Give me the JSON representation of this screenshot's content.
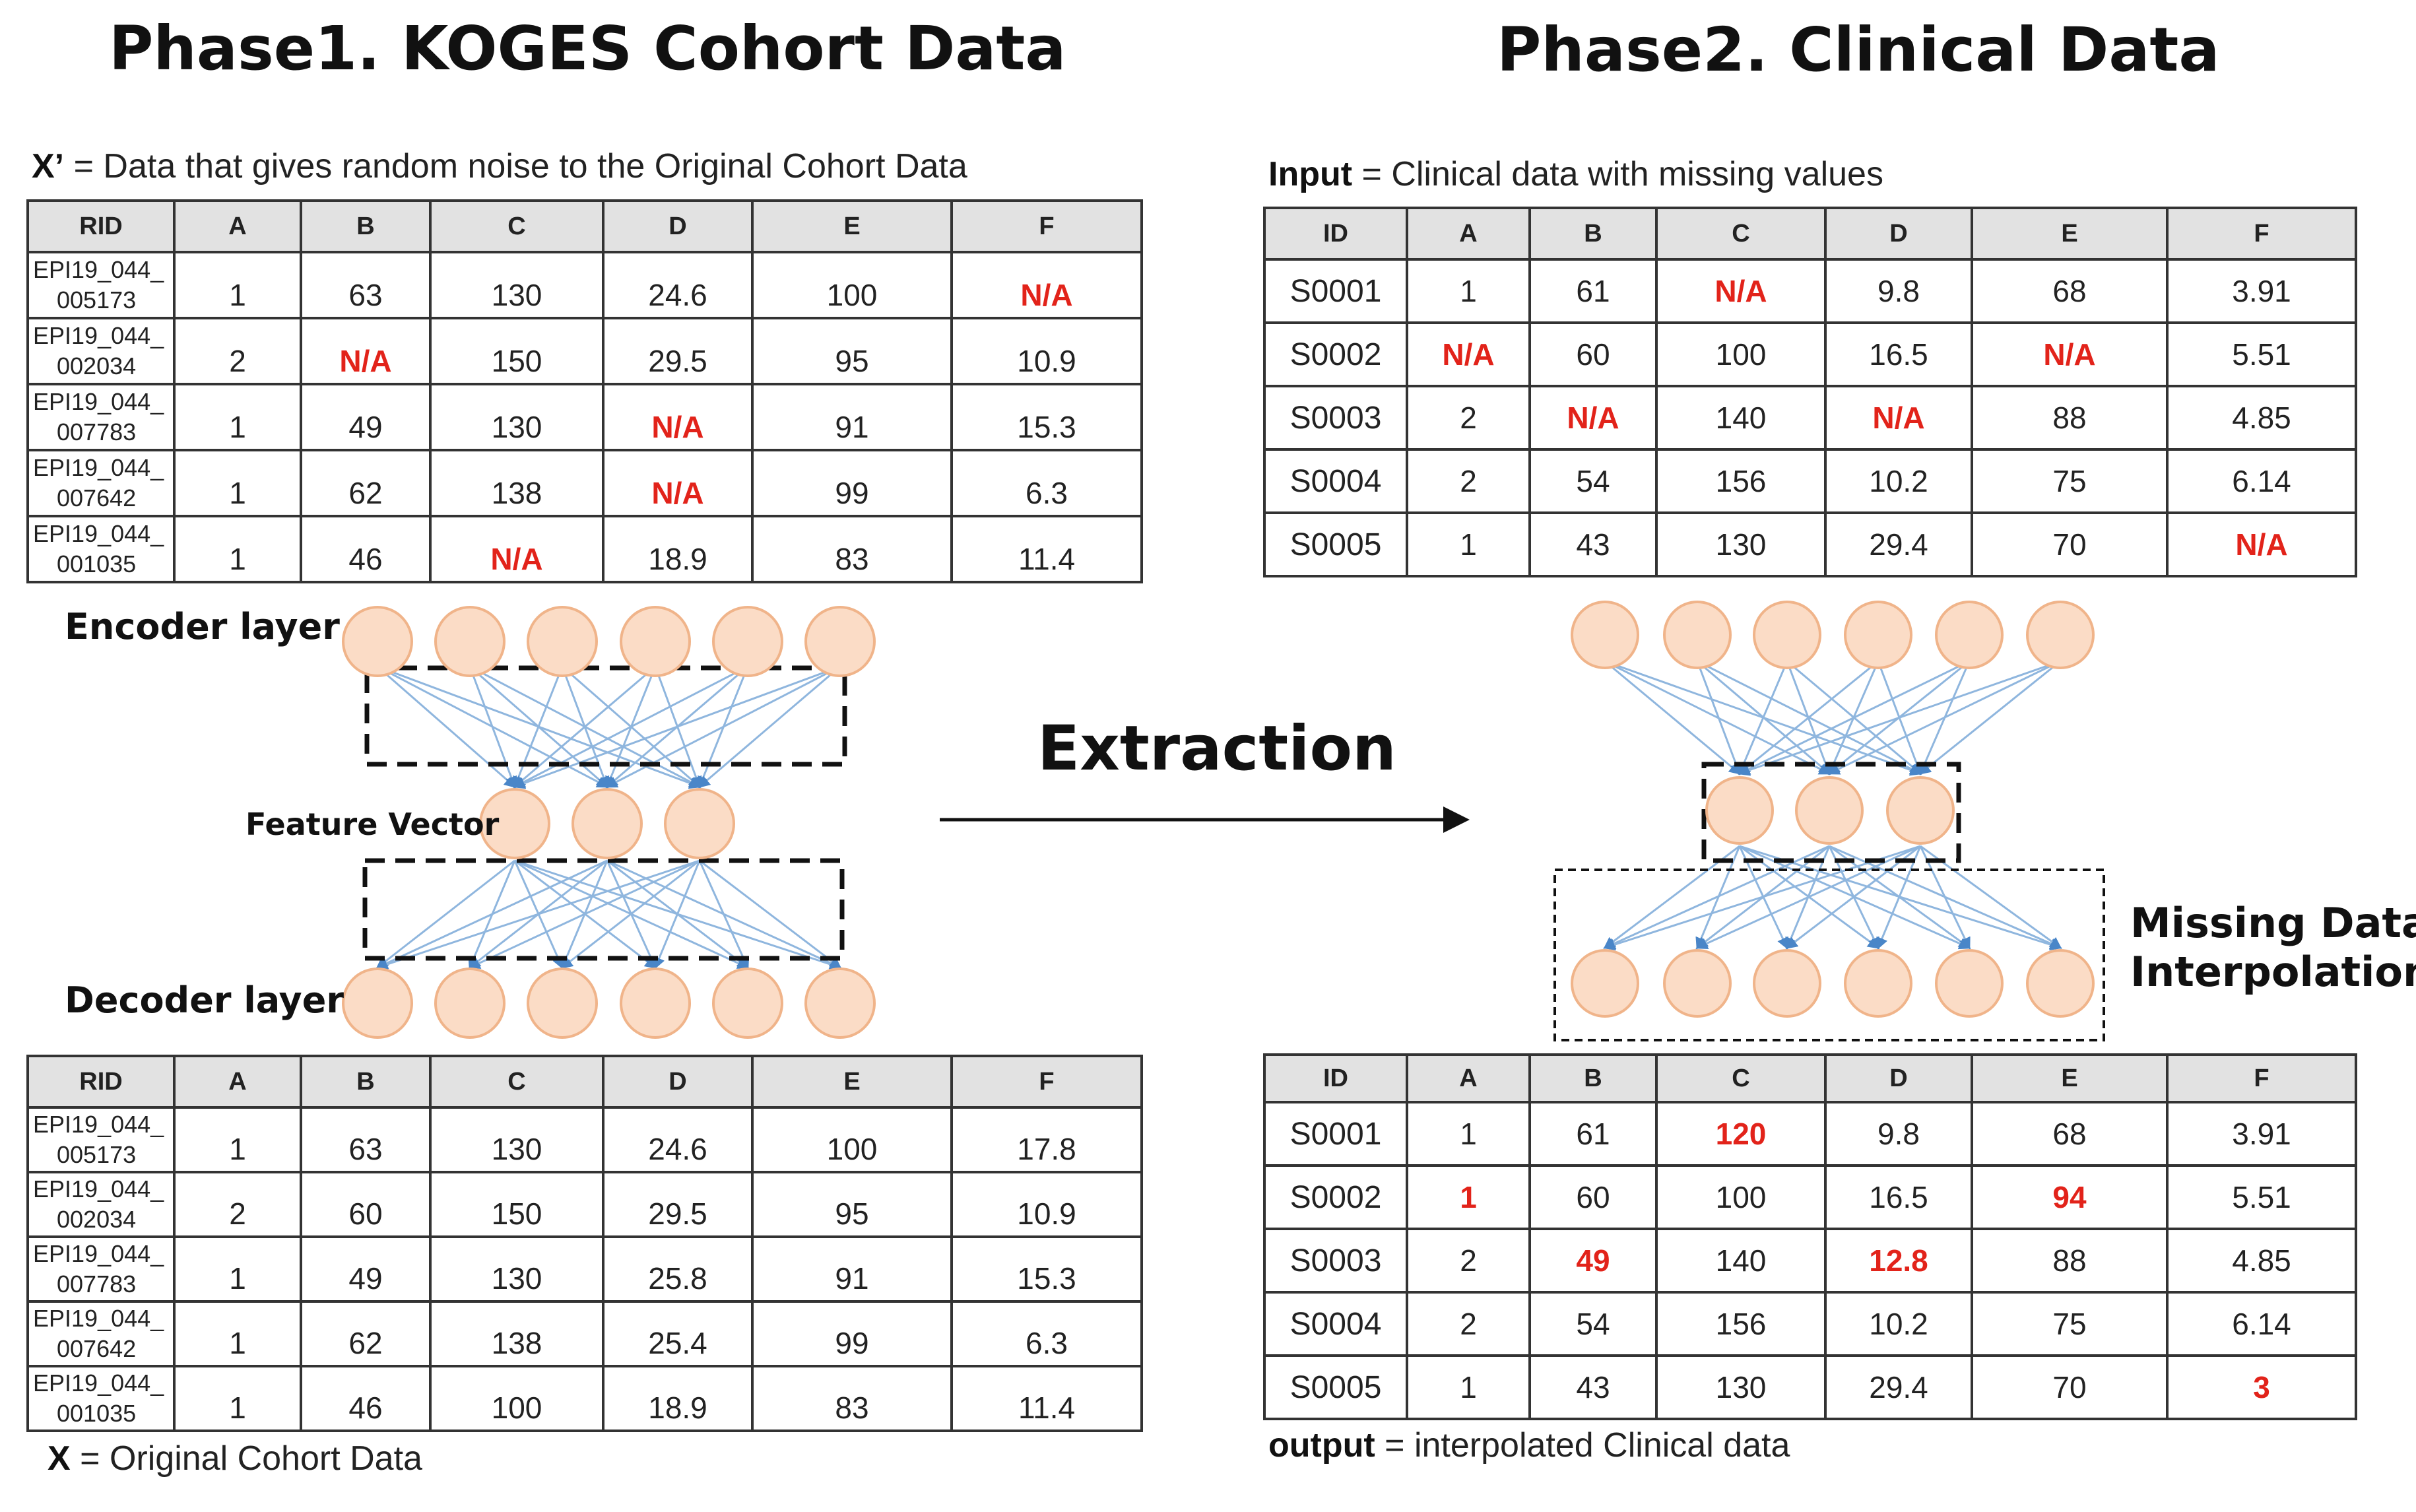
{
  "titles": {
    "phase1": "Phase1. KOGES Cohort Data",
    "phase2": "Phase2. Clinical Data"
  },
  "captions": {
    "x_prime_symbol": "X’",
    "x_prime_text": "= Data that gives random noise to the Original Cohort Data",
    "x_symbol": "X",
    "x_text": "= Original Cohort Data",
    "input_symbol": "Input",
    "input_text": "= Clinical data with missing values",
    "output_symbol": "output",
    "output_text": "= interpolated Clinical data"
  },
  "labels": {
    "encoder": "Encoder layer",
    "decoder": "Decoder layer",
    "feature_vector": "Feature Vector",
    "extraction": "Extraction",
    "missing_line1": "Missing Data",
    "missing_line2": "Interpolation"
  },
  "colors": {
    "node_fill": "#fbdcc6",
    "node_stroke": "#f0b48a",
    "edge": "#8fb6de",
    "arrowhead": "#4a86c8",
    "missing": "#e2231a"
  },
  "cohort_noisy": {
    "columns": [
      "RID",
      "A",
      "B",
      "C",
      "D",
      "E",
      "F"
    ],
    "rows": [
      {
        "rid1": "EPI19_044_",
        "rid2": "005173",
        "cells": [
          "1",
          "63",
          "130",
          "24.6",
          "100",
          "N/A"
        ]
      },
      {
        "rid1": "EPI19_044_",
        "rid2": "002034",
        "cells": [
          "2",
          "N/A",
          "150",
          "29.5",
          "95",
          "10.9"
        ]
      },
      {
        "rid1": "EPI19_044_",
        "rid2": "007783",
        "cells": [
          "1",
          "49",
          "130",
          "N/A",
          "91",
          "15.3"
        ]
      },
      {
        "rid1": "EPI19_044_",
        "rid2": "007642",
        "cells": [
          "1",
          "62",
          "138",
          "N/A",
          "99",
          "6.3"
        ]
      },
      {
        "rid1": "EPI19_044_",
        "rid2": "001035",
        "cells": [
          "1",
          "46",
          "N/A",
          "18.9",
          "83",
          "11.4"
        ]
      }
    ]
  },
  "cohort_original": {
    "columns": [
      "RID",
      "A",
      "B",
      "C",
      "D",
      "E",
      "F"
    ],
    "rows": [
      {
        "rid1": "EPI19_044_",
        "rid2": "005173",
        "cells": [
          "1",
          "63",
          "130",
          "24.6",
          "100",
          "17.8"
        ]
      },
      {
        "rid1": "EPI19_044_",
        "rid2": "002034",
        "cells": [
          "2",
          "60",
          "150",
          "29.5",
          "95",
          "10.9"
        ]
      },
      {
        "rid1": "EPI19_044_",
        "rid2": "007783",
        "cells": [
          "1",
          "49",
          "130",
          "25.8",
          "91",
          "15.3"
        ]
      },
      {
        "rid1": "EPI19_044_",
        "rid2": "007642",
        "cells": [
          "1",
          "62",
          "138",
          "25.4",
          "99",
          "6.3"
        ]
      },
      {
        "rid1": "EPI19_044_",
        "rid2": "001035",
        "cells": [
          "1",
          "46",
          "100",
          "18.9",
          "83",
          "11.4"
        ]
      }
    ]
  },
  "clinical_input": {
    "columns": [
      "ID",
      "A",
      "B",
      "C",
      "D",
      "E",
      "F"
    ],
    "rows": [
      {
        "id": "S0001",
        "cells": [
          "1",
          "61",
          "N/A",
          "9.8",
          "68",
          "3.91"
        ]
      },
      {
        "id": "S0002",
        "cells": [
          "N/A",
          "60",
          "100",
          "16.5",
          "N/A",
          "5.51"
        ]
      },
      {
        "id": "S0003",
        "cells": [
          "2",
          "N/A",
          "140",
          "N/A",
          "88",
          "4.85"
        ]
      },
      {
        "id": "S0004",
        "cells": [
          "2",
          "54",
          "156",
          "10.2",
          "75",
          "6.14"
        ]
      },
      {
        "id": "S0005",
        "cells": [
          "1",
          "43",
          "130",
          "29.4",
          "70",
          "N/A"
        ]
      }
    ]
  },
  "clinical_output": {
    "columns": [
      "ID",
      "A",
      "B",
      "C",
      "D",
      "E",
      "F"
    ],
    "rows": [
      {
        "id": "S0001",
        "cells": [
          "1",
          "61",
          "120",
          "9.8",
          "68",
          "3.91"
        ],
        "imputed": [
          2
        ]
      },
      {
        "id": "S0002",
        "cells": [
          "1",
          "60",
          "100",
          "16.5",
          "94",
          "5.51"
        ],
        "imputed": [
          0,
          4
        ]
      },
      {
        "id": "S0003",
        "cells": [
          "2",
          "49",
          "140",
          "12.8",
          "88",
          "4.85"
        ],
        "imputed": [
          1,
          3
        ]
      },
      {
        "id": "S0004",
        "cells": [
          "2",
          "54",
          "156",
          "10.2",
          "75",
          "6.14"
        ],
        "imputed": []
      },
      {
        "id": "S0005",
        "cells": [
          "1",
          "43",
          "130",
          "29.4",
          "70",
          "3"
        ],
        "imputed": [
          5
        ]
      }
    ]
  }
}
